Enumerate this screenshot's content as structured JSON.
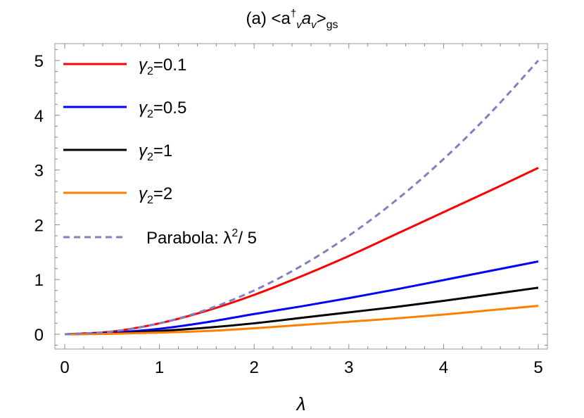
{
  "chart_data": {
    "type": "line",
    "title": {
      "prefix": "(a)  <a",
      "dagger": "†",
      "sub1": "v",
      "mid": "a",
      "sub2": "v",
      "close": ">",
      "sub3": "gs"
    },
    "xlabel": "λ",
    "ylabel": "",
    "xlim": [
      -0.05,
      5.05
    ],
    "ylim": [
      -0.27,
      5.28
    ],
    "xticks": [
      "0",
      "1",
      "2",
      "3",
      "4",
      "5"
    ],
    "yticks": [
      "0",
      "1",
      "2",
      "3",
      "4",
      "5"
    ],
    "grid": false,
    "legend_position": "top-left",
    "x": [
      0,
      0.5,
      1,
      1.5,
      2,
      2.5,
      3,
      3.5,
      4,
      4.5,
      5
    ],
    "series": [
      {
        "name": "γ2=0.1",
        "label_main": "γ",
        "label_sub": "2",
        "label_rest": "=0.1",
        "color": "#ff0000",
        "dashed": false,
        "values": [
          0,
          0.05,
          0.2,
          0.43,
          0.72,
          1.06,
          1.43,
          1.83,
          2.23,
          2.63,
          3.04
        ]
      },
      {
        "name": "γ2=0.5",
        "label_main": "γ",
        "label_sub": "2",
        "label_rest": "=0.5",
        "color": "#0000ff",
        "dashed": false,
        "values": [
          0,
          0.03,
          0.1,
          0.22,
          0.37,
          0.51,
          0.66,
          0.82,
          0.99,
          1.16,
          1.33
        ]
      },
      {
        "name": "γ2=1",
        "label_main": "γ",
        "label_sub": "2",
        "label_rest": "=1",
        "color": "#000000",
        "dashed": false,
        "values": [
          0,
          0.015,
          0.06,
          0.12,
          0.2,
          0.3,
          0.4,
          0.5,
          0.61,
          0.73,
          0.85
        ]
      },
      {
        "name": "γ2=2",
        "label_main": "γ",
        "label_sub": "2",
        "label_rest": "=2",
        "color": "#ff8000",
        "dashed": false,
        "values": [
          0,
          0.008,
          0.03,
          0.06,
          0.11,
          0.17,
          0.23,
          0.29,
          0.36,
          0.44,
          0.52
        ]
      },
      {
        "name": "Parabola: λ2/ 5",
        "label_main": "Parabola: λ",
        "label_sup": "2",
        "label_rest": "/ 5",
        "color": "#8080c0",
        "dashed": true,
        "values": [
          0,
          0.05,
          0.2,
          0.45,
          0.8,
          1.25,
          1.8,
          2.45,
          3.2,
          4.05,
          5.0
        ]
      }
    ]
  }
}
